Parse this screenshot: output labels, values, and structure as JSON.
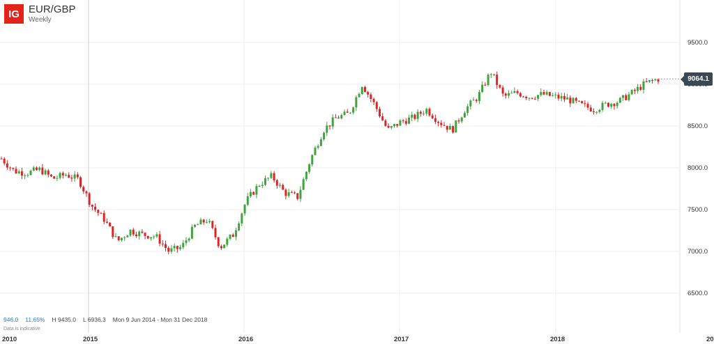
{
  "header": {
    "logo": "IG",
    "title": "EUR/GBP",
    "subtitle": "Weekly"
  },
  "stats": {
    "change": "946.0",
    "change_pct": "11.65%",
    "high": "H 9435.0",
    "low": "L 6936.3",
    "range": "Mon 9 Jun 2014 - Mon 31 Dec 2018"
  },
  "note": "Data is indicative",
  "last_price": "9064.1",
  "colors": {
    "up": "#3fa33f",
    "down": "#d92525",
    "badge": "#3c4754",
    "grid": "#ececec",
    "logo": "#e2231a"
  },
  "chart_data": {
    "type": "candlestick",
    "title": "EUR/GBP",
    "y_ticks": [
      "9500.0",
      "9000.0",
      "8500.0",
      "8000.0",
      "7500.0",
      "7000.0",
      "6500.0"
    ],
    "x_ticks": [
      "2010",
      "2015",
      "2016",
      "2017",
      "2018",
      "20"
    ],
    "ylim": [
      6300,
      9700
    ],
    "grid": true,
    "keyframes": [
      [
        "2014-06",
        8110
      ],
      [
        "2014-07",
        7960
      ],
      [
        "2014-08",
        7940
      ],
      [
        "2014-09",
        7980
      ],
      [
        "2014-10",
        7870
      ],
      [
        "2014-11",
        7920
      ],
      [
        "2014-12",
        7860
      ],
      [
        "2015-01",
        7550
      ],
      [
        "2015-02",
        7380
      ],
      [
        "2015-03",
        7120
      ],
      [
        "2015-04",
        7250
      ],
      [
        "2015-05",
        7200
      ],
      [
        "2015-06",
        7180
      ],
      [
        "2015-07",
        7000
      ],
      [
        "2015-08",
        7050
      ],
      [
        "2015-09",
        7300
      ],
      [
        "2015-10",
        7380
      ],
      [
        "2015-11",
        7050
      ],
      [
        "2015-12",
        7200
      ],
      [
        "2016-01",
        7600
      ],
      [
        "2016-02",
        7800
      ],
      [
        "2016-03",
        7900
      ],
      [
        "2016-04",
        7700
      ],
      [
        "2016-05",
        7650
      ],
      [
        "2016-06",
        8100
      ],
      [
        "2016-07",
        8450
      ],
      [
        "2016-08",
        8600
      ],
      [
        "2016-09",
        8650
      ],
      [
        "2016-10",
        9000
      ],
      [
        "2016-11",
        8750
      ],
      [
        "2016-12",
        8450
      ],
      [
        "2017-01",
        8550
      ],
      [
        "2017-02",
        8600
      ],
      [
        "2017-03",
        8700
      ],
      [
        "2017-04",
        8550
      ],
      [
        "2017-05",
        8450
      ],
      [
        "2017-06",
        8700
      ],
      [
        "2017-07",
        8850
      ],
      [
        "2017-08",
        9150
      ],
      [
        "2017-09",
        8850
      ],
      [
        "2017-10",
        8900
      ],
      [
        "2017-11",
        8850
      ],
      [
        "2017-12",
        8880
      ],
      [
        "2018-01",
        8850
      ],
      [
        "2018-02",
        8820
      ],
      [
        "2018-03",
        8750
      ],
      [
        "2018-04",
        8700
      ],
      [
        "2018-05",
        8760
      ],
      [
        "2018-06",
        8800
      ],
      [
        "2018-07",
        8900
      ],
      [
        "2018-08",
        9010
      ],
      [
        "2018-09",
        9064
      ]
    ]
  }
}
